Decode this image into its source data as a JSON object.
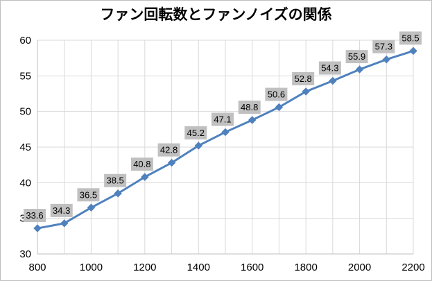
{
  "chart_data": {
    "type": "line",
    "title": "ファン回転数とファンノイズの関係",
    "xlabel": "",
    "ylabel": "",
    "x": [
      800,
      900,
      1000,
      1100,
      1200,
      1300,
      1400,
      1500,
      1600,
      1700,
      1800,
      1900,
      2000,
      2100,
      2200
    ],
    "series": [
      {
        "values": [
          33.6,
          34.3,
          36.5,
          38.5,
          40.8,
          42.8,
          45.2,
          47.1,
          48.8,
          50.6,
          52.8,
          54.3,
          55.9,
          57.3,
          58.5
        ]
      }
    ],
    "xlim": [
      800,
      2200
    ],
    "ylim": [
      30,
      60
    ],
    "x_ticks": [
      800,
      1000,
      1200,
      1400,
      1600,
      1800,
      2000,
      2200
    ],
    "y_ticks": [
      30,
      35,
      40,
      45,
      50,
      55,
      60
    ],
    "grid": true,
    "legend": "none",
    "data_labels": true,
    "colors": {
      "line": "#4f81bd",
      "marker": "#4f81bd",
      "label_bg": "#c0c0c0",
      "grid": "#d9d9d9"
    }
  }
}
